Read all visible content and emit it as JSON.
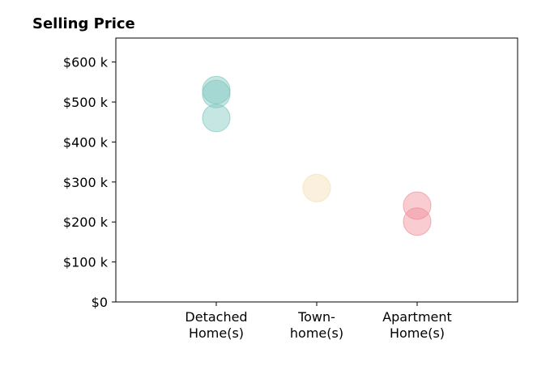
{
  "chart_data": {
    "type": "scatter",
    "title": "Selling Price",
    "xlabel": "",
    "ylabel": "",
    "categories": [
      [
        "Detached",
        "Home(s)"
      ],
      [
        "Town-",
        "home(s)"
      ],
      [
        "Apartment",
        "Home(s)"
      ]
    ],
    "series": [
      {
        "category_index": 0,
        "values": [
          530000,
          520000,
          460000
        ],
        "color": "#7ec8be"
      },
      {
        "category_index": 1,
        "values": [
          285000
        ],
        "color": "#f5deb3"
      },
      {
        "category_index": 2,
        "values": [
          241000,
          201000
        ],
        "color": "#ef8f98"
      }
    ],
    "ylim": [
      0,
      660000
    ],
    "xlim": [
      0,
      4
    ],
    "yticks": [
      0,
      100000,
      200000,
      300000,
      400000,
      500000,
      600000
    ],
    "ytick_labels": [
      "$0",
      "$100 k",
      "$200 k",
      "$300 k",
      "$400 k",
      "$500 k",
      "$600 k"
    ],
    "grid": false,
    "legend": "none",
    "marker_opacity": 0.45
  }
}
